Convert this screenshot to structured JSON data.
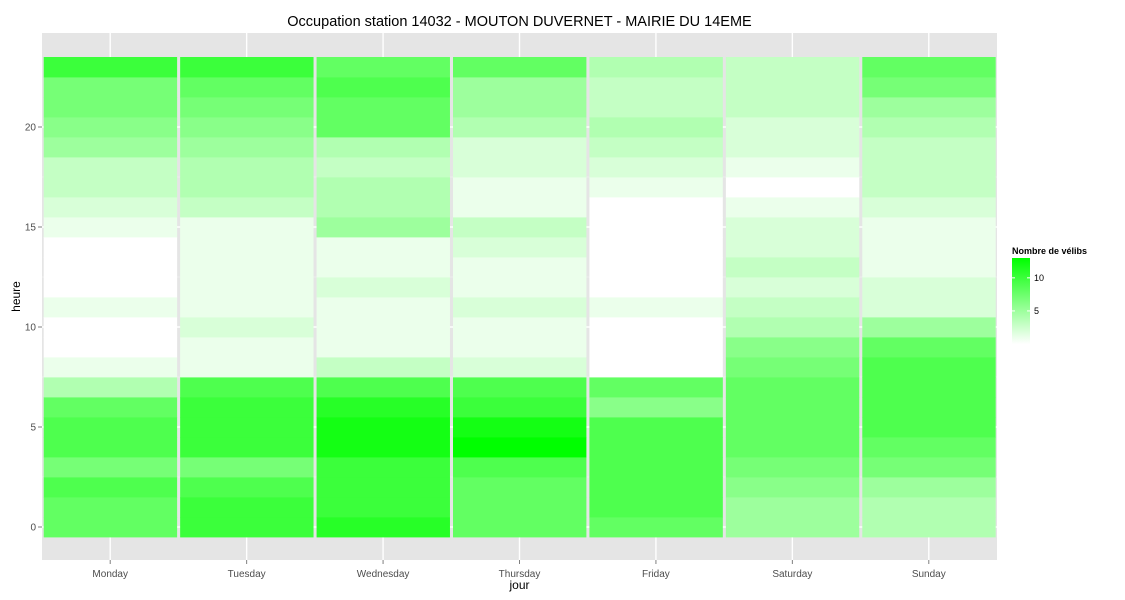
{
  "chart_data": {
    "type": "heatmap",
    "title": "Occupation station 14032 - MOUTON DUVERNET - MAIRIE DU 14EME",
    "xlabel": "jour",
    "ylabel": "heure",
    "x_categories": [
      "Monday",
      "Tuesday",
      "Wednesday",
      "Thursday",
      "Friday",
      "Saturday",
      "Sunday"
    ],
    "y_range": [
      -0.5,
      23.5
    ],
    "y_ticks": [
      0,
      5,
      10,
      15,
      20
    ],
    "grid": true,
    "legend": {
      "title": "Nombre de vélibs",
      "ticks": [
        5,
        10
      ],
      "range": [
        0,
        13
      ],
      "placement": "right"
    },
    "colors": {
      "low": "#ffffff",
      "high": "#00ff00",
      "panel": "#e5e5e5",
      "grid": "#ffffff"
    },
    "series": [
      {
        "name": "Monday",
        "values": [
          8,
          8,
          9,
          7,
          9,
          9,
          8,
          4,
          1,
          0,
          0,
          1,
          0,
          0,
          0,
          1,
          2,
          3,
          3,
          5,
          6,
          7,
          7,
          10
        ]
      },
      {
        "name": "Tuesday",
        "values": [
          10,
          10,
          9,
          7,
          10,
          10,
          10,
          9,
          1,
          1,
          2,
          1,
          1,
          1,
          1,
          1,
          3,
          4,
          4,
          5,
          6,
          7,
          8,
          10
        ]
      },
      {
        "name": "Wednesday",
        "values": [
          11,
          10,
          10,
          10,
          12,
          12,
          11,
          9,
          3,
          1,
          1,
          1,
          2,
          1,
          1,
          5,
          4,
          4,
          3,
          4,
          8,
          8,
          9,
          8
        ]
      },
      {
        "name": "Thursday",
        "values": [
          8,
          8,
          8,
          9,
          13,
          12,
          10,
          9,
          2,
          1,
          1,
          2,
          1,
          1,
          2,
          3,
          1,
          1,
          2,
          2,
          4,
          5,
          5,
          8
        ]
      },
      {
        "name": "Friday",
        "values": [
          8,
          9,
          9,
          9,
          9,
          9,
          6,
          8,
          0,
          0,
          0,
          1,
          0,
          0,
          0,
          0,
          0,
          1,
          2,
          3,
          4,
          3,
          3,
          4
        ]
      },
      {
        "name": "Saturday",
        "values": [
          5,
          5,
          6,
          7,
          8,
          8,
          8,
          8,
          7,
          6,
          4,
          3,
          2,
          3,
          2,
          2,
          1,
          0,
          1,
          2,
          2,
          3,
          3,
          3
        ]
      },
      {
        "name": "Sunday",
        "values": [
          4,
          4,
          5,
          7,
          8,
          9,
          9,
          9,
          9,
          8,
          5,
          2,
          2,
          1,
          1,
          1,
          2,
          3,
          3,
          3,
          4,
          5,
          7,
          8
        ]
      }
    ]
  }
}
